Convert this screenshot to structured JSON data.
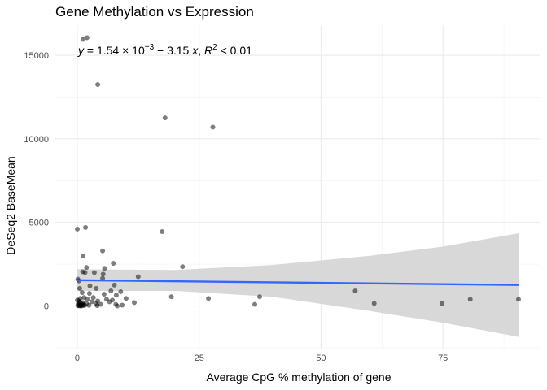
{
  "chart_data": {
    "type": "scatter",
    "title": "Gene Methylation vs Expression",
    "xlabel": "Average CpG % methylation of gene",
    "ylabel": "DeSeq2 BaseMean",
    "xlim": [
      -4.5,
      95
    ],
    "ylim": [
      -2600,
      16800
    ],
    "x_ticks": [
      0,
      25,
      50,
      75
    ],
    "x_tick_labels": [
      "0",
      "25",
      "50",
      "75"
    ],
    "y_ticks": [
      0,
      5000,
      10000,
      15000
    ],
    "y_tick_labels": [
      "0",
      "5000",
      "10000",
      "15000"
    ],
    "grid": true,
    "points": [
      {
        "x": 1.2,
        "y": 15950
      },
      {
        "x": 2.0,
        "y": 16050
      },
      {
        "x": 4.2,
        "y": 13250
      },
      {
        "x": 18.0,
        "y": 11250
      },
      {
        "x": 27.8,
        "y": 10700
      },
      {
        "x": 0.0,
        "y": 4600
      },
      {
        "x": 1.7,
        "y": 4700
      },
      {
        "x": 17.4,
        "y": 4450
      },
      {
        "x": 5.2,
        "y": 3300
      },
      {
        "x": 1.2,
        "y": 3000
      },
      {
        "x": 7.4,
        "y": 2550
      },
      {
        "x": 21.6,
        "y": 2350
      },
      {
        "x": 1.9,
        "y": 2300
      },
      {
        "x": 5.6,
        "y": 2250
      },
      {
        "x": 1.1,
        "y": 2050
      },
      {
        "x": 1.6,
        "y": 2000
      },
      {
        "x": 3.5,
        "y": 2000
      },
      {
        "x": 5.3,
        "y": 1900
      },
      {
        "x": 12.5,
        "y": 1750
      },
      {
        "x": 5.2,
        "y": 1650
      },
      {
        "x": 0.1,
        "y": 1600
      },
      {
        "x": 0.3,
        "y": 1500
      },
      {
        "x": 2.6,
        "y": 1200
      },
      {
        "x": 7.6,
        "y": 1250
      },
      {
        "x": 0.5,
        "y": 1050
      },
      {
        "x": 3.9,
        "y": 1050
      },
      {
        "x": 6.9,
        "y": 900
      },
      {
        "x": 8.9,
        "y": 850
      },
      {
        "x": 57.0,
        "y": 900
      },
      {
        "x": 1.0,
        "y": 800
      },
      {
        "x": 2.5,
        "y": 750
      },
      {
        "x": 5.5,
        "y": 700
      },
      {
        "x": 8.0,
        "y": 650
      },
      {
        "x": 19.3,
        "y": 550
      },
      {
        "x": 26.9,
        "y": 450
      },
      {
        "x": 37.4,
        "y": 550
      },
      {
        "x": 3.3,
        "y": 500
      },
      {
        "x": 6.0,
        "y": 400
      },
      {
        "x": 10.0,
        "y": 450
      },
      {
        "x": 80.6,
        "y": 400
      },
      {
        "x": 90.5,
        "y": 400
      },
      {
        "x": 0.0,
        "y": 350
      },
      {
        "x": 0.3,
        "y": 300
      },
      {
        "x": 0.6,
        "y": 450
      },
      {
        "x": 1.4,
        "y": 500
      },
      {
        "x": 2.1,
        "y": 400
      },
      {
        "x": 4.2,
        "y": 300
      },
      {
        "x": 6.6,
        "y": 250
      },
      {
        "x": 7.2,
        "y": 350
      },
      {
        "x": 11.7,
        "y": 200
      },
      {
        "x": 0.5,
        "y": 250
      },
      {
        "x": 1.1,
        "y": 200
      },
      {
        "x": 1.9,
        "y": 150
      },
      {
        "x": 3.0,
        "y": 250
      },
      {
        "x": 3.8,
        "y": 150
      },
      {
        "x": 4.8,
        "y": 100
      },
      {
        "x": 7.9,
        "y": 100
      },
      {
        "x": 9.2,
        "y": 50
      },
      {
        "x": 36.4,
        "y": 100
      },
      {
        "x": 60.9,
        "y": 150
      },
      {
        "x": 74.8,
        "y": 150
      },
      {
        "x": 0.2,
        "y": 150
      },
      {
        "x": 0.4,
        "y": 80
      },
      {
        "x": 0.7,
        "y": 50
      },
      {
        "x": 0.9,
        "y": 120
      },
      {
        "x": 1.2,
        "y": 60
      },
      {
        "x": 1.5,
        "y": 30
      },
      {
        "x": 0.1,
        "y": 20
      },
      {
        "x": 0.3,
        "y": 10
      },
      {
        "x": 0.6,
        "y": 0
      },
      {
        "x": 0.8,
        "y": 15
      },
      {
        "x": 1.0,
        "y": 5
      },
      {
        "x": 1.3,
        "y": 100
      },
      {
        "x": 2.4,
        "y": 40
      },
      {
        "x": 4.1,
        "y": 20
      },
      {
        "x": 8.2,
        "y": 0
      }
    ],
    "fit_line": {
      "x0": 0,
      "y0": 1540,
      "x1": 90.5,
      "y1": 1255,
      "color": "#3366FF"
    },
    "ci_band": {
      "color": "#D6D6D6",
      "upper": [
        [
          0,
          2200
        ],
        [
          20,
          2150
        ],
        [
          40,
          2450
        ],
        [
          60,
          3000
        ],
        [
          75,
          3550
        ],
        [
          90.5,
          4350
        ]
      ],
      "lower": [
        [
          0,
          900
        ],
        [
          20,
          900
        ],
        [
          40,
          550
        ],
        [
          60,
          -300
        ],
        [
          75,
          -1000
        ],
        [
          90.5,
          -1850
        ]
      ]
    },
    "point_color": "#000000",
    "point_opacity": 0.5,
    "annotation": {
      "pre": "y",
      "a": " = 1.54 × 10",
      "exp1": "+3",
      "b": " − 3.15 ",
      "xvar": "x",
      "c": ", ",
      "rvar": "R",
      "exp2": "2",
      "d": " < 0.01"
    }
  }
}
